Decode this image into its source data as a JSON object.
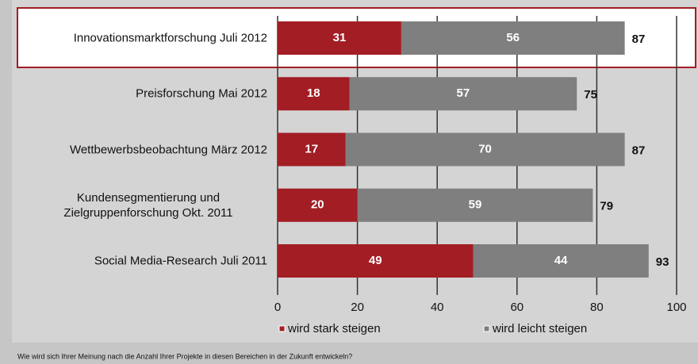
{
  "chart_data": {
    "type": "bar",
    "orientation": "horizontal",
    "stacked": true,
    "categories": [
      "Innovationsmarktforschung Juli 2012",
      "Preisforschung Mai 2012",
      "Wettbewerbsbeobachtung März 2012",
      "Kundensegmentierung und Zielgruppenforschung Okt. 2011",
      "Social Media-Research Juli 2011"
    ],
    "series": [
      {
        "name": "wird stark steigen",
        "color": "#a31d24",
        "values": [
          31,
          18,
          17,
          20,
          49
        ]
      },
      {
        "name": "wird leicht steigen",
        "color": "#7f7f7f",
        "values": [
          56,
          57,
          70,
          59,
          44
        ]
      }
    ],
    "totals": [
      87,
      75,
      87,
      79,
      93
    ],
    "xlim": [
      0,
      100
    ],
    "xticks": [
      0,
      20,
      40,
      60,
      80,
      100
    ],
    "grid": true,
    "footnote": "Wie wird sich Ihrer Meinung nach die Anzahl Ihrer Projekte in diesen Bereichen in der Zukunft entwickeln?"
  }
}
